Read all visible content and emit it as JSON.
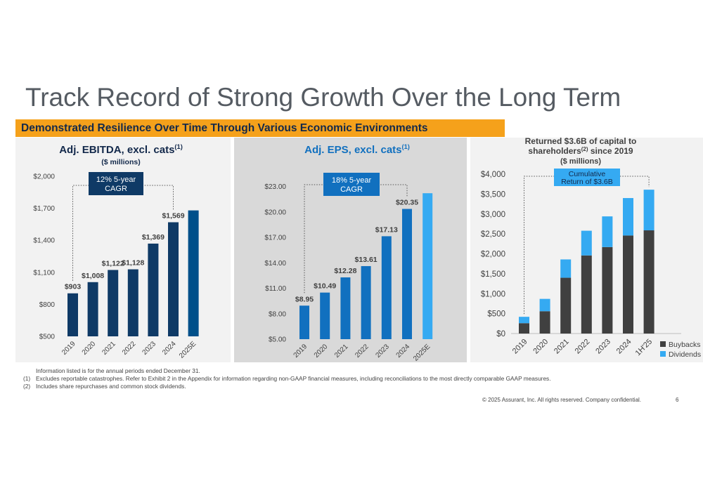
{
  "slide": {
    "title": "Track Record of Strong Growth Over the Long Term",
    "banner": "Demonstrated Resilience Over Time Through Various Economic Environments",
    "footnotes": [
      {
        "num": "",
        "text": "Information listed is for the annual periods ended December 31."
      },
      {
        "num": "(1)",
        "text": "Excludes reportable catastrophes. Refer to Exhibit 2 in the Appendix for information regarding non-GAAP financial measures, including reconciliations to the most directly comparable GAAP measures."
      },
      {
        "num": "(2)",
        "text": "Includes share repurchases and common stock dividends."
      }
    ],
    "copyright": "© 2025 Assurant, Inc. All rights reserved. Company confidential.",
    "page_number": "6",
    "colors": {
      "banner": "#f5a11b",
      "navy": "#0f3a66",
      "blue": "#1170bf",
      "light_blue": "#35aaf2",
      "teal": "#00508a",
      "dark_gray": "#404040",
      "panel_bg": "#f2f2f2",
      "panel_bg_mid": "#d9d9d9"
    }
  },
  "chart_data": [
    {
      "type": "bar",
      "title": "Adj. EBITDA, excl. cats",
      "title_superscript": "(1)",
      "subtitle": "($ millions)",
      "categories": [
        "2019",
        "2020",
        "2021",
        "2022",
        "2023",
        "2024",
        "2025E"
      ],
      "values": [
        903,
        1008,
        1122,
        1128,
        1369,
        1569,
        1680
      ],
      "data_labels": [
        "$903",
        "$1,008",
        "$1,122",
        "$1,128",
        "$1,369",
        "$1,569",
        ""
      ],
      "ylim": [
        500,
        2000
      ],
      "yticks": [
        500,
        800,
        1100,
        1400,
        1700,
        2000
      ],
      "ytick_labels": [
        "$500",
        "$800",
        "$1,100",
        "$1,400",
        "$1,700",
        "$2,000"
      ],
      "annotation": "12% 5-year CAGR",
      "annotation_lines": [
        "12% 5-year",
        "CAGR"
      ],
      "grid": false
    },
    {
      "type": "bar",
      "title": "Adj. EPS, excl. cats",
      "title_superscript": "(1)",
      "subtitle": "",
      "categories": [
        "2019",
        "2020",
        "2021",
        "2022",
        "2023",
        "2024",
        "2025E"
      ],
      "values": [
        8.95,
        10.49,
        12.28,
        13.61,
        17.13,
        20.35,
        22.2
      ],
      "data_labels": [
        "$8.95",
        "$10.49",
        "$12.28",
        "$13.61",
        "$17.13",
        "$20.35",
        ""
      ],
      "ylim": [
        5,
        24.2
      ],
      "yticks": [
        5,
        8,
        11,
        14,
        17,
        20,
        23
      ],
      "ytick_labels": [
        "$5.00",
        "$8.00",
        "$11.00",
        "$14.00",
        "$17.00",
        "$20.00",
        "$23.00"
      ],
      "annotation": "18% 5-year CAGR",
      "annotation_lines": [
        "18% 5-year",
        "CAGR"
      ],
      "grid": false
    },
    {
      "type": "bar",
      "stacked": true,
      "title": "Returned $3.6B of capital to shareholders since 2019",
      "title_lines": [
        "Returned $3.6B of capital to",
        "shareholders",
        " since 2019"
      ],
      "title_superscript": "(2)",
      "subtitle": "($ millions)",
      "categories": [
        "2019",
        "2020",
        "2021",
        "2022",
        "2023",
        "2024",
        "1H'25"
      ],
      "series": [
        {
          "name": "Buybacks",
          "values": [
            260,
            560,
            1400,
            1960,
            2170,
            2460,
            2590
          ]
        },
        {
          "name": "Dividends",
          "values": [
            160,
            310,
            460,
            620,
            770,
            940,
            1020
          ]
        }
      ],
      "ylim": [
        0,
        4000
      ],
      "yticks": [
        0,
        500,
        1000,
        1500,
        2000,
        2500,
        3000,
        3500,
        4000
      ],
      "ytick_labels": [
        "$0",
        "$500",
        "$1,000",
        "$1,500",
        "$2,000",
        "$2,500",
        "$3,000",
        "$3,500",
        "$4,000"
      ],
      "annotation": "Cumulative Return of $3.6B",
      "annotation_lines": [
        "Cumulative",
        "Return of $3.6B"
      ],
      "legend": "bottom-right",
      "grid": false
    }
  ]
}
